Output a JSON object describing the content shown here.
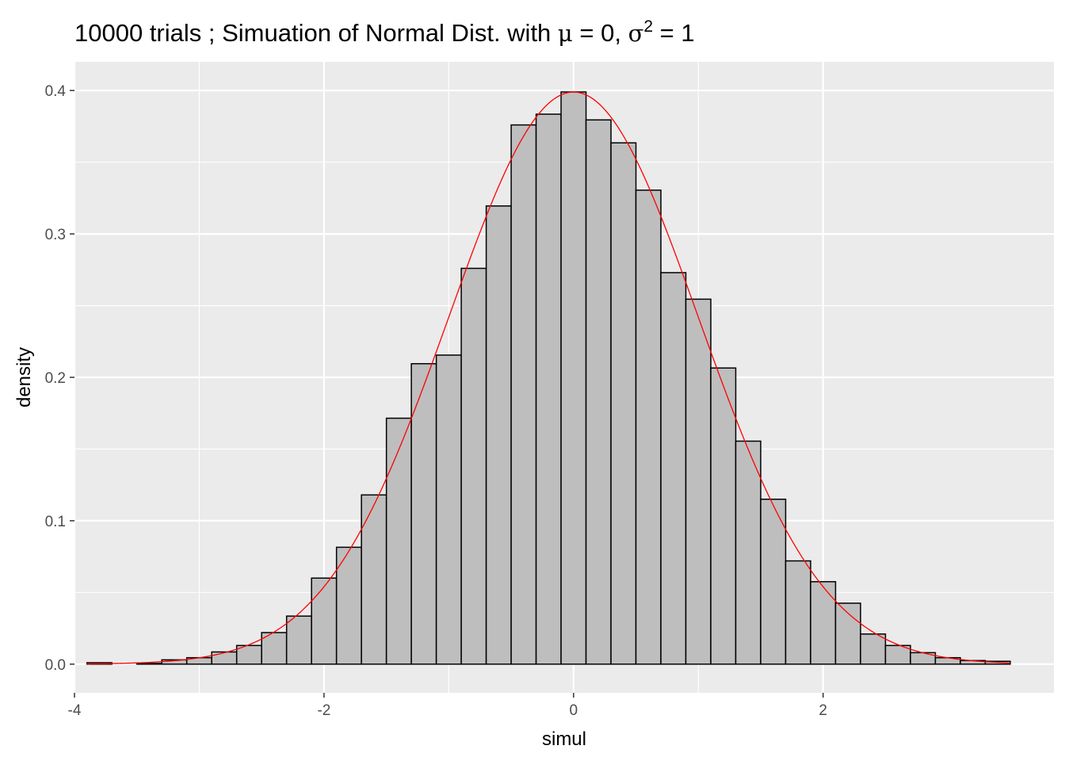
{
  "chart_data": {
    "type": "bar",
    "title_parts": {
      "prefix": "10000 trials ; Simuation of Normal Dist. with ",
      "mu_symbol": "μ",
      "mu_equals": " = 0, ",
      "sigma_symbol": "σ",
      "sigma_exponent": "2",
      "sigma_equals": " = 1"
    },
    "xlabel": "simul",
    "ylabel": "density",
    "xlim": [
      -4.0,
      3.85
    ],
    "ylim": [
      -0.02,
      0.42
    ],
    "x_ticks": [
      {
        "value": -4,
        "label": "-4"
      },
      {
        "value": -2,
        "label": "-2"
      },
      {
        "value": 0,
        "label": "0"
      },
      {
        "value": 2,
        "label": "2"
      }
    ],
    "y_ticks": [
      {
        "value": 0.0,
        "label": "0.0"
      },
      {
        "value": 0.1,
        "label": "0.1"
      },
      {
        "value": 0.2,
        "label": "0.2"
      },
      {
        "value": 0.3,
        "label": "0.3"
      },
      {
        "value": 0.4,
        "label": "0.4"
      }
    ],
    "grid": true,
    "background": "#ebebeb",
    "bar_fill": "#bebebe",
    "bar_outline": "#000000",
    "curve_color": "#ff0000",
    "curve": "normal density, mean 0, variance 1",
    "bins": {
      "x_start": [
        -3.9,
        -3.7,
        -3.5,
        -3.3,
        -3.1,
        -2.9,
        -2.7,
        -2.5,
        -2.3,
        -2.1,
        -1.9,
        -1.7,
        -1.5,
        -1.3,
        -1.1,
        -0.9,
        -0.7,
        -0.5,
        -0.3,
        -0.1,
        0.1,
        0.3,
        0.5,
        0.7,
        0.9,
        1.1,
        1.3,
        1.5,
        1.7,
        1.9,
        2.1,
        2.3,
        2.5,
        2.7,
        2.9,
        3.1,
        3.3
      ],
      "x_end": [
        -3.7,
        -3.5,
        -3.3,
        -3.1,
        -2.9,
        -2.7,
        -2.5,
        -2.3,
        -2.1,
        -1.9,
        -1.7,
        -1.5,
        -1.3,
        -1.1,
        -0.9,
        -0.7,
        -0.5,
        -0.3,
        -0.1,
        0.1,
        0.3,
        0.5,
        0.7,
        0.9,
        1.1,
        1.3,
        1.5,
        1.7,
        1.9,
        2.1,
        2.3,
        2.5,
        2.7,
        2.9,
        3.1,
        3.3,
        3.5
      ],
      "density": [
        0.001,
        0.0,
        0.0005,
        0.003,
        0.0045,
        0.0085,
        0.013,
        0.022,
        0.0335,
        0.06,
        0.0815,
        0.118,
        0.1715,
        0.2095,
        0.2155,
        0.276,
        0.3195,
        0.376,
        0.3835,
        0.399,
        0.3795,
        0.3635,
        0.3305,
        0.273,
        0.2545,
        0.2065,
        0.1555,
        0.115,
        0.072,
        0.0575,
        0.0425,
        0.021,
        0.013,
        0.008,
        0.0045,
        0.0025,
        0.002
      ]
    }
  }
}
